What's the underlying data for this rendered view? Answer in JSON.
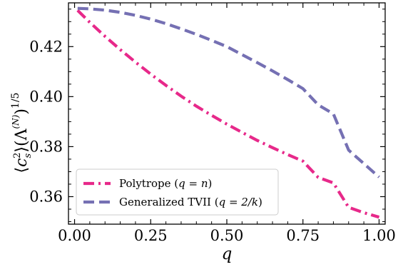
{
  "chart_data": {
    "type": "line",
    "title": "",
    "xlabel": "q",
    "ylabel": "⟨c_s^2⟩(Λ^(N))^1/5",
    "ylabel_parts": {
      "open": "⟨",
      "c": "c",
      "sub": "s",
      "sup": "2",
      "close": "⟩",
      "lam_open": "(Λ",
      "lam_sup": "(N)",
      "lam_close": ")",
      "outer_sup": "1/5"
    },
    "xlim": [
      -0.02,
      1.02
    ],
    "ylim": [
      0.349,
      0.4375
    ],
    "xticks": [
      0.0,
      0.25,
      0.5,
      0.75,
      1.0
    ],
    "xtick_labels": [
      "0.00",
      "0.25",
      "0.50",
      "0.75",
      "1.00"
    ],
    "yticks": [
      0.36,
      0.38,
      0.4,
      0.42
    ],
    "ytick_labels": [
      "0.36",
      "0.38",
      "0.40",
      "0.42"
    ],
    "grid": false,
    "legend_position": "lower-left",
    "series": [
      {
        "name": "Polytrope (q = n)",
        "label_parts": {
          "prefix": "Polytrope (",
          "math": "q = n",
          "suffix": ")"
        },
        "color": "#e7298a",
        "dash": "dashdot",
        "x": [
          0.01,
          0.05,
          0.1,
          0.15,
          0.2,
          0.25,
          0.3,
          0.35,
          0.4,
          0.45,
          0.5,
          0.55,
          0.6,
          0.65,
          0.7,
          0.75,
          0.8,
          0.85,
          0.9,
          0.95,
          1.0
        ],
        "y": [
          0.4345,
          0.4297,
          0.4241,
          0.4188,
          0.4138,
          0.409,
          0.4045,
          0.4002,
          0.3962,
          0.3925,
          0.389,
          0.3857,
          0.3825,
          0.3796,
          0.3768,
          0.3742,
          0.3677,
          0.3655,
          0.3557,
          0.3536,
          0.3518
        ]
      },
      {
        "name": "Generalized TVII (q = 2/k)",
        "label_parts": {
          "prefix": "Generalized TVII (",
          "math": "q = 2/k",
          "suffix": ")"
        },
        "color": "#7570b3",
        "dash": "dashed",
        "x": [
          0.01,
          0.05,
          0.1,
          0.15,
          0.2,
          0.25,
          0.3,
          0.35,
          0.4,
          0.45,
          0.5,
          0.55,
          0.6,
          0.65,
          0.7,
          0.75,
          0.8,
          0.85,
          0.9,
          0.95,
          1.0
        ],
        "y": [
          0.4353,
          0.4351,
          0.4346,
          0.4337,
          0.4325,
          0.431,
          0.4292,
          0.4271,
          0.4249,
          0.4225,
          0.42,
          0.4168,
          0.4136,
          0.4103,
          0.4068,
          0.4032,
          0.3967,
          0.3931,
          0.3786,
          0.3732,
          0.3678
        ]
      }
    ]
  }
}
